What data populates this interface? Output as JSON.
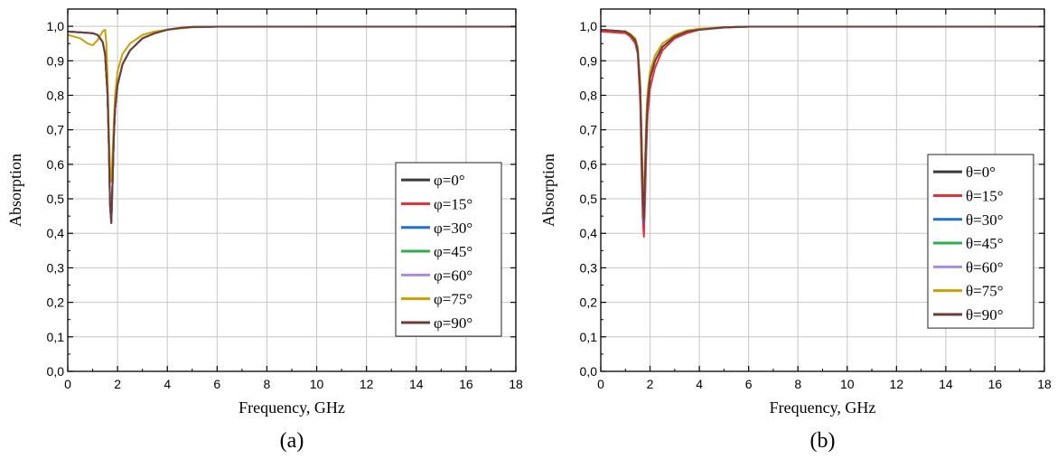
{
  "chart_data": [
    {
      "type": "line",
      "caption": "(a)",
      "xlabel": "Frequency, GHz",
      "ylabel": "Absorption",
      "xlim": [
        0,
        18
      ],
      "ylim": [
        0,
        1.05
      ],
      "xticks": [
        "0",
        "2",
        "4",
        "6",
        "8",
        "10",
        "12",
        "14",
        "16",
        "18"
      ],
      "yticks": [
        "0,0",
        "0,1",
        "0,2",
        "0,3",
        "0,4",
        "0,5",
        "0,6",
        "0,7",
        "0,8",
        "0,9",
        "1,0"
      ],
      "grid": true,
      "legend_position": "right",
      "series": [
        {
          "name": "φ=0°",
          "color": "#3a3a3a",
          "x": [
            0,
            1,
            1.2,
            1.4,
            1.5,
            1.6,
            1.65,
            1.7,
            1.75,
            1.8,
            1.85,
            1.9,
            2.0,
            2.2,
            2.5,
            3.0,
            3.5,
            4.0,
            4.5,
            5.0,
            6.0,
            18.0
          ],
          "y": [
            0.985,
            0.98,
            0.975,
            0.955,
            0.92,
            0.8,
            0.66,
            0.48,
            0.43,
            0.55,
            0.68,
            0.76,
            0.83,
            0.89,
            0.93,
            0.965,
            0.98,
            0.99,
            0.995,
            0.998,
            0.999,
            0.999
          ]
        },
        {
          "name": "φ=15°",
          "color": "#e8303a",
          "x": [
            0,
            1,
            1.2,
            1.4,
            1.5,
            1.6,
            1.65,
            1.7,
            1.75,
            1.8,
            1.85,
            1.9,
            2.0,
            2.2,
            2.5,
            3.0,
            3.5,
            4.0,
            4.5,
            5.0,
            6.0,
            18.0
          ],
          "y": [
            0.985,
            0.98,
            0.975,
            0.955,
            0.92,
            0.8,
            0.66,
            0.48,
            0.43,
            0.55,
            0.68,
            0.76,
            0.83,
            0.89,
            0.93,
            0.965,
            0.98,
            0.99,
            0.995,
            0.998,
            0.999,
            0.999
          ]
        },
        {
          "name": "φ=30°",
          "color": "#1f6fd1",
          "x": [
            0,
            1,
            1.2,
            1.4,
            1.5,
            1.6,
            1.65,
            1.7,
            1.75,
            1.8,
            1.85,
            1.9,
            2.0,
            2.2,
            2.5,
            3.0,
            3.5,
            4.0,
            4.5,
            5.0,
            6.0,
            18.0
          ],
          "y": [
            0.985,
            0.98,
            0.975,
            0.955,
            0.92,
            0.8,
            0.66,
            0.48,
            0.43,
            0.55,
            0.68,
            0.76,
            0.83,
            0.89,
            0.93,
            0.965,
            0.98,
            0.99,
            0.995,
            0.998,
            0.999,
            0.999
          ]
        },
        {
          "name": "φ=45°",
          "color": "#2fae4e",
          "x": [
            0,
            1,
            1.2,
            1.4,
            1.5,
            1.6,
            1.65,
            1.7,
            1.75,
            1.8,
            1.85,
            1.9,
            2.0,
            2.2,
            2.5,
            3.0,
            3.5,
            4.0,
            4.5,
            5.0,
            6.0,
            18.0
          ],
          "y": [
            0.985,
            0.98,
            0.975,
            0.955,
            0.92,
            0.8,
            0.66,
            0.48,
            0.43,
            0.55,
            0.68,
            0.76,
            0.83,
            0.89,
            0.93,
            0.965,
            0.98,
            0.99,
            0.995,
            0.998,
            0.999,
            0.999
          ]
        },
        {
          "name": "φ=60°",
          "color": "#a98be0",
          "x": [
            0,
            1,
            1.2,
            1.4,
            1.5,
            1.6,
            1.65,
            1.7,
            1.75,
            1.8,
            1.85,
            1.9,
            2.0,
            2.2,
            2.5,
            3.0,
            3.5,
            4.0,
            4.5,
            5.0,
            6.0,
            18.0
          ],
          "y": [
            0.985,
            0.98,
            0.975,
            0.955,
            0.92,
            0.8,
            0.66,
            0.48,
            0.43,
            0.55,
            0.68,
            0.76,
            0.83,
            0.89,
            0.93,
            0.965,
            0.98,
            0.99,
            0.995,
            0.998,
            0.999,
            0.999
          ]
        },
        {
          "name": "φ=75°",
          "color": "#c9a000",
          "x": [
            0,
            0.5,
            0.8,
            1.0,
            1.2,
            1.4,
            1.5,
            1.55,
            1.6,
            1.65,
            1.7,
            1.75,
            1.8,
            1.85,
            1.9,
            2.0,
            2.2,
            2.5,
            3.0,
            3.5,
            4.0,
            5.0,
            6.0,
            18.0
          ],
          "y": [
            0.975,
            0.965,
            0.95,
            0.945,
            0.96,
            0.985,
            0.99,
            0.95,
            0.85,
            0.7,
            0.58,
            0.55,
            0.63,
            0.72,
            0.8,
            0.87,
            0.92,
            0.95,
            0.975,
            0.985,
            0.99,
            0.997,
            0.999,
            0.999
          ]
        },
        {
          "name": "φ=90°",
          "color": "#6e3b3b",
          "x": [
            0,
            1,
            1.2,
            1.4,
            1.5,
            1.6,
            1.65,
            1.7,
            1.75,
            1.8,
            1.85,
            1.9,
            2.0,
            2.2,
            2.5,
            3.0,
            3.5,
            4.0,
            4.5,
            5.0,
            6.0,
            18.0
          ],
          "y": [
            0.985,
            0.98,
            0.975,
            0.955,
            0.92,
            0.8,
            0.66,
            0.48,
            0.43,
            0.55,
            0.68,
            0.76,
            0.83,
            0.89,
            0.93,
            0.965,
            0.98,
            0.99,
            0.995,
            0.998,
            0.999,
            0.999
          ]
        }
      ]
    },
    {
      "type": "line",
      "caption": "(b)",
      "xlabel": "Frequency, GHz",
      "ylabel": "Absorption",
      "xlim": [
        0,
        18
      ],
      "ylim": [
        0,
        1.05
      ],
      "xticks": [
        "0",
        "2",
        "4",
        "6",
        "8",
        "10",
        "12",
        "14",
        "16",
        "18"
      ],
      "yticks": [
        "0,0",
        "0,1",
        "0,2",
        "0,3",
        "0,4",
        "0,5",
        "0,6",
        "0,7",
        "0,8",
        "0,9",
        "1,0"
      ],
      "grid": true,
      "legend_position": "right",
      "series": [
        {
          "name": "θ=0°",
          "color": "#3a3a3a",
          "x": [
            0,
            1,
            1.2,
            1.4,
            1.5,
            1.6,
            1.65,
            1.7,
            1.75,
            1.8,
            1.85,
            1.9,
            2.0,
            2.2,
            2.5,
            3.0,
            3.5,
            4.0,
            5.0,
            6.0,
            18.0
          ],
          "y": [
            0.99,
            0.985,
            0.975,
            0.96,
            0.93,
            0.82,
            0.68,
            0.52,
            0.44,
            0.58,
            0.7,
            0.78,
            0.85,
            0.9,
            0.94,
            0.97,
            0.985,
            0.99,
            0.997,
            0.999,
            0.999
          ]
        },
        {
          "name": "θ=15°",
          "color": "#e8303a",
          "x": [
            0,
            1,
            1.2,
            1.4,
            1.5,
            1.6,
            1.65,
            1.7,
            1.75,
            1.8,
            1.85,
            1.9,
            2.0,
            2.2,
            2.5,
            3.0,
            3.5,
            4.0,
            5.0,
            6.0,
            18.0
          ],
          "y": [
            0.985,
            0.98,
            0.97,
            0.95,
            0.92,
            0.78,
            0.6,
            0.45,
            0.39,
            0.5,
            0.64,
            0.74,
            0.82,
            0.88,
            0.93,
            0.965,
            0.98,
            0.99,
            0.996,
            0.999,
            0.999
          ]
        },
        {
          "name": "θ=30°",
          "color": "#1f6fd1",
          "x": [
            0,
            1,
            1.2,
            1.4,
            1.5,
            1.6,
            1.65,
            1.7,
            1.75,
            1.8,
            1.85,
            1.9,
            2.0,
            2.2,
            2.5,
            3.0,
            3.5,
            4.0,
            5.0,
            6.0,
            18.0
          ],
          "y": [
            0.99,
            0.985,
            0.975,
            0.96,
            0.93,
            0.82,
            0.67,
            0.51,
            0.43,
            0.57,
            0.69,
            0.78,
            0.85,
            0.9,
            0.94,
            0.97,
            0.985,
            0.99,
            0.997,
            0.999,
            0.999
          ]
        },
        {
          "name": "θ=45°",
          "color": "#2fae4e",
          "x": [
            0,
            1,
            1.2,
            1.4,
            1.5,
            1.6,
            1.65,
            1.7,
            1.75,
            1.8,
            1.85,
            1.9,
            2.0,
            2.2,
            2.5,
            3.0,
            3.5,
            4.0,
            5.0,
            6.0,
            18.0
          ],
          "y": [
            0.99,
            0.985,
            0.975,
            0.96,
            0.93,
            0.82,
            0.68,
            0.52,
            0.44,
            0.58,
            0.7,
            0.78,
            0.85,
            0.9,
            0.94,
            0.97,
            0.985,
            0.99,
            0.997,
            0.999,
            0.999
          ]
        },
        {
          "name": "θ=60°",
          "color": "#a98be0",
          "x": [
            0,
            1,
            1.2,
            1.4,
            1.5,
            1.6,
            1.65,
            1.7,
            1.75,
            1.8,
            1.85,
            1.9,
            2.0,
            2.2,
            2.5,
            3.0,
            3.5,
            4.0,
            5.0,
            6.0,
            18.0
          ],
          "y": [
            0.99,
            0.985,
            0.975,
            0.96,
            0.93,
            0.82,
            0.68,
            0.52,
            0.44,
            0.58,
            0.7,
            0.78,
            0.85,
            0.9,
            0.94,
            0.97,
            0.985,
            0.99,
            0.997,
            0.999,
            0.999
          ]
        },
        {
          "name": "θ=75°",
          "color": "#c9a000",
          "x": [
            0,
            1,
            1.2,
            1.4,
            1.5,
            1.6,
            1.65,
            1.7,
            1.75,
            1.8,
            1.85,
            1.9,
            2.0,
            2.2,
            2.5,
            3.0,
            3.5,
            4.0,
            5.0,
            6.0,
            18.0
          ],
          "y": [
            0.99,
            0.985,
            0.978,
            0.965,
            0.94,
            0.84,
            0.7,
            0.56,
            0.49,
            0.62,
            0.74,
            0.81,
            0.87,
            0.915,
            0.95,
            0.975,
            0.988,
            0.993,
            0.997,
            0.999,
            0.999
          ]
        },
        {
          "name": "θ=90°",
          "color": "#6e3b3b",
          "x": [
            0,
            1,
            1.2,
            1.4,
            1.5,
            1.6,
            1.65,
            1.7,
            1.75,
            1.8,
            1.85,
            1.9,
            2.0,
            2.2,
            2.5,
            3.0,
            3.5,
            4.0,
            5.0,
            6.0,
            18.0
          ],
          "y": [
            0.99,
            0.985,
            0.975,
            0.96,
            0.93,
            0.82,
            0.68,
            0.52,
            0.44,
            0.58,
            0.7,
            0.78,
            0.85,
            0.9,
            0.94,
            0.97,
            0.985,
            0.99,
            0.997,
            0.999,
            0.999
          ]
        }
      ]
    }
  ]
}
